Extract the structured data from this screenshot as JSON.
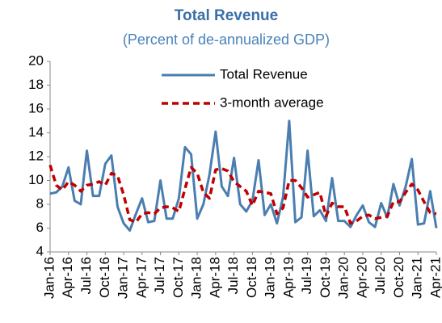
{
  "chart_data": {
    "type": "line",
    "title": "Total Revenue",
    "subtitle": "(Percent of de-annualized GDP)",
    "categories": [
      "Jan-16",
      null,
      null,
      "Apr-16",
      null,
      null,
      "Jul-16",
      null,
      null,
      "Oct-16",
      null,
      null,
      "Jan-17",
      null,
      null,
      "Apr-17",
      null,
      null,
      "Jul-17",
      null,
      null,
      "Oct-17",
      null,
      null,
      "Jan-18",
      null,
      null,
      "Apr-18",
      null,
      null,
      "Jul-18",
      null,
      null,
      "Oct-18",
      null,
      null,
      "Jan-19",
      null,
      null,
      "Apr-19",
      null,
      null,
      "Jul-19",
      null,
      null,
      "Oct-19",
      null,
      null,
      "Jan-20",
      null,
      null,
      "Apr-20",
      null,
      null,
      "Jul-20",
      null,
      null,
      "Oct-20",
      null,
      null,
      "Jan-21",
      null,
      null,
      "Apr-21"
    ],
    "series": [
      {
        "name": "Total Revenue",
        "color": "#4a7eb0",
        "dashed": false,
        "values": [
          8.9,
          9.0,
          9.5,
          11.1,
          8.3,
          8.0,
          12.5,
          8.7,
          8.7,
          11.4,
          12.1,
          7.8,
          6.4,
          5.8,
          7.2,
          8.5,
          6.5,
          6.6,
          10.0,
          6.8,
          6.8,
          8.5,
          12.8,
          12.2,
          6.8,
          8.0,
          10.5,
          14.1,
          9.5,
          8.7,
          11.9,
          8.0,
          7.4,
          8.3,
          11.7,
          7.1,
          8.0,
          6.4,
          8.6,
          15.0,
          6.5,
          6.9,
          12.5,
          7.0,
          7.5,
          6.6,
          10.2,
          6.6,
          6.6,
          6.1,
          7.1,
          7.9,
          6.5,
          6.1,
          8.1,
          6.9,
          9.7,
          7.9,
          9.5,
          11.8,
          6.3,
          6.4,
          9.1,
          6.0
        ]
      },
      {
        "name": "3-month average",
        "color": "#c00000",
        "dashed": true,
        "values": [
          11.3,
          9.6,
          9.2,
          9.9,
          9.6,
          9.1,
          9.6,
          9.7,
          9.9,
          9.6,
          10.6,
          10.4,
          8.8,
          6.7,
          6.5,
          7.2,
          7.3,
          7.2,
          7.7,
          7.8,
          7.7,
          7.4,
          9.3,
          11.1,
          10.6,
          9.0,
          8.5,
          10.9,
          11.0,
          10.8,
          9.9,
          9.5,
          9.1,
          7.9,
          9.1,
          9.0,
          8.9,
          7.2,
          7.7,
          10.0,
          10.0,
          9.4,
          8.6,
          8.8,
          9.0,
          7.0,
          8.1,
          7.8,
          7.8,
          6.4,
          6.6,
          7.0,
          7.1,
          6.8,
          6.9,
          7.0,
          8.2,
          8.2,
          9.0,
          9.7,
          9.2,
          8.2,
          7.3,
          7.2
        ]
      }
    ],
    "ylim": [
      4,
      20
    ],
    "yticks": [
      4,
      6,
      8,
      10,
      12,
      14,
      16,
      18,
      20
    ],
    "grid": false
  }
}
